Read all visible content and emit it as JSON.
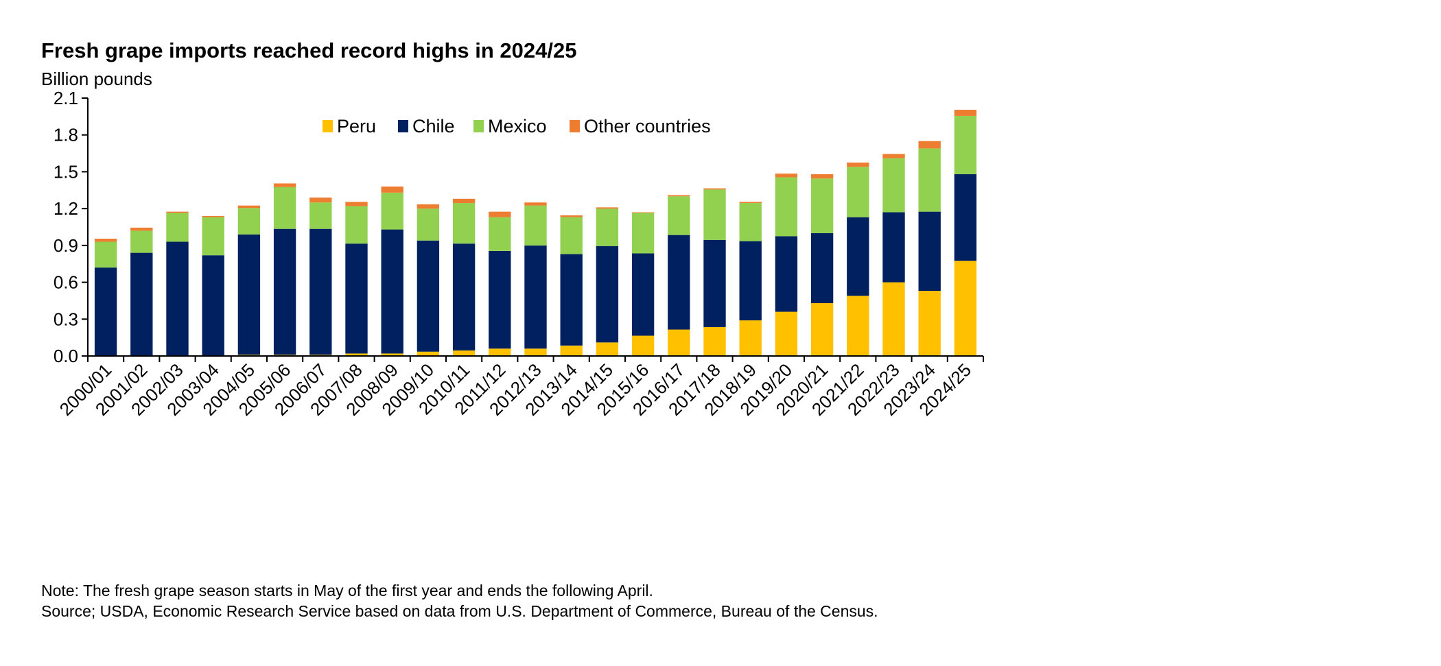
{
  "chart_data": {
    "type": "bar",
    "stacked": true,
    "title": "Fresh grape imports reached record highs in 2024/25",
    "ylabel": "Billion pounds",
    "xlabel": "",
    "ylim": [
      0,
      2.1
    ],
    "yticks": [
      "0.0",
      "0.3",
      "0.6",
      "0.9",
      "1.2",
      "1.5",
      "1.8",
      "2.1"
    ],
    "grid": false,
    "legend_position": "top-center",
    "categories": [
      "2000/01",
      "2001/02",
      "2002/03",
      "2003/04",
      "2004/05",
      "2005/06",
      "2006/07",
      "2007/08",
      "2008/09",
      "2009/10",
      "2010/11",
      "2011/12",
      "2012/13",
      "2013/14",
      "2014/15",
      "2015/16",
      "2016/17",
      "2017/18",
      "2018/19",
      "2019/20",
      "2020/21",
      "2021/22",
      "2022/23",
      "2023/24",
      "2024/25"
    ],
    "series": [
      {
        "name": "Peru",
        "color": "#FFC000",
        "values": [
          0,
          0,
          0,
          0,
          0.01,
          0.01,
          0.01,
          0.02,
          0.02,
          0.035,
          0.045,
          0.06,
          0.06,
          0.085,
          0.11,
          0.165,
          0.215,
          0.235,
          0.29,
          0.36,
          0.43,
          0.49,
          0.6,
          0.53,
          0.775
        ]
      },
      {
        "name": "Chile",
        "color": "#002060",
        "values": [
          0.72,
          0.84,
          0.93,
          0.82,
          0.98,
          1.025,
          1.025,
          0.895,
          1.01,
          0.905,
          0.87,
          0.795,
          0.84,
          0.745,
          0.785,
          0.67,
          0.77,
          0.71,
          0.645,
          0.615,
          0.57,
          0.64,
          0.57,
          0.645,
          0.705
        ]
      },
      {
        "name": "Mexico",
        "color": "#92D050",
        "values": [
          0.21,
          0.18,
          0.235,
          0.31,
          0.215,
          0.34,
          0.215,
          0.305,
          0.3,
          0.26,
          0.33,
          0.275,
          0.325,
          0.3,
          0.305,
          0.33,
          0.315,
          0.41,
          0.31,
          0.48,
          0.445,
          0.41,
          0.44,
          0.515,
          0.475
        ]
      },
      {
        "name": "Other countries",
        "color": "#ED7D31",
        "values": [
          0.025,
          0.025,
          0.01,
          0.01,
          0.02,
          0.03,
          0.04,
          0.035,
          0.05,
          0.035,
          0.035,
          0.045,
          0.025,
          0.015,
          0.01,
          0.005,
          0.01,
          0.01,
          0.01,
          0.03,
          0.035,
          0.035,
          0.035,
          0.06,
          0.05
        ]
      }
    ]
  },
  "notes": {
    "note": "Note: The fresh grape season starts in May of the first year and ends the following April.",
    "source": "Source; USDA, Economic Research Service based on data from U.S. Department of Commerce, Bureau of the Census."
  }
}
